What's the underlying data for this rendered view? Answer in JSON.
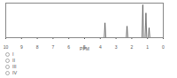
{
  "chart_data": {
    "type": "line",
    "xlabel": "PPM",
    "color": "#555555",
    "x": [
      10,
      3.75,
      3.7,
      3.65,
      2.35,
      2.3,
      2.25,
      1.35,
      1.3,
      1.25,
      1.15,
      1.1,
      1.05,
      0.95,
      0.9,
      0.85,
      0
    ],
    "values": [
      0,
      0,
      0.45,
      0,
      0,
      0.35,
      0,
      0,
      1,
      0,
      0,
      0.75,
      0,
      0,
      0.3,
      0,
      0
    ],
    "xlim": [
      10,
      0
    ],
    "xticks": [
      10,
      9,
      8,
      7,
      6,
      5,
      4,
      3,
      2,
      1,
      0
    ],
    "ylim": [
      0,
      1.05
    ],
    "tick_labels": "x"
  },
  "choices": [
    "I",
    "II",
    "III",
    "IV"
  ]
}
